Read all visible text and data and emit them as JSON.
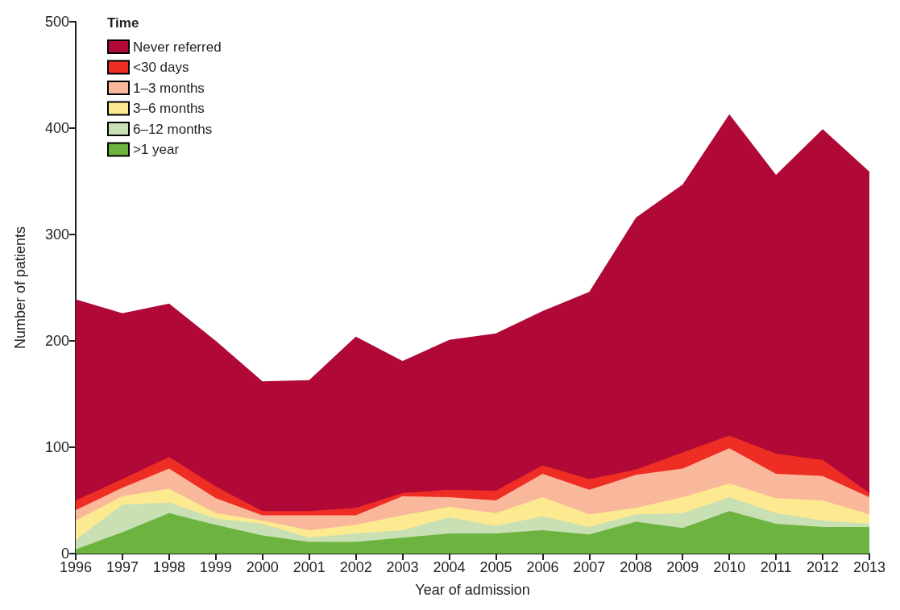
{
  "chart_data": {
    "type": "area",
    "stacked": true,
    "xlabel": "Year of admission",
    "ylabel": "Number of patients",
    "legend_title": "Time",
    "legend": "top left",
    "grid": false,
    "x": [
      1996,
      1997,
      1998,
      1999,
      2000,
      2001,
      2002,
      2003,
      2004,
      2005,
      2006,
      2007,
      2008,
      2009,
      2010,
      2011,
      2012,
      2013
    ],
    "xlim": [
      1996,
      2013
    ],
    "xticks": [
      1996,
      1997,
      1998,
      1999,
      2000,
      2001,
      2002,
      2003,
      2004,
      2005,
      2006,
      2007,
      2008,
      2009,
      2010,
      2011,
      2012,
      2013
    ],
    "ylim": [
      0,
      500
    ],
    "yticks": [
      0,
      100,
      200,
      300,
      400,
      500
    ],
    "series": [
      {
        "name": ">1 year",
        "color": "#6db33f",
        "values": [
          4,
          20,
          38,
          27,
          17,
          11,
          11,
          15,
          19,
          19,
          22,
          18,
          30,
          24,
          40,
          28,
          25,
          25
        ]
      },
      {
        "name": "6–12 months",
        "color": "#c9e0b5",
        "values": [
          9,
          26,
          10,
          6,
          11,
          4,
          8,
          7,
          15,
          7,
          13,
          7,
          7,
          14,
          13,
          10,
          6,
          3
        ]
      },
      {
        "name": "3–6 months",
        "color": "#fde98f",
        "values": [
          18,
          8,
          13,
          5,
          3,
          7,
          8,
          14,
          10,
          12,
          18,
          12,
          6,
          15,
          13,
          14,
          19,
          9
        ]
      },
      {
        "name": "1–3 months",
        "color": "#f9b89c",
        "values": [
          10,
          8,
          19,
          14,
          5,
          14,
          9,
          18,
          9,
          12,
          22,
          23,
          31,
          27,
          33,
          23,
          23,
          16
        ]
      },
      {
        "name": "<30 days",
        "color": "#ee2d24",
        "values": [
          9,
          8,
          11,
          11,
          4,
          4,
          7,
          3,
          7,
          9,
          8,
          10,
          5,
          15,
          12,
          19,
          15,
          4
        ]
      },
      {
        "name": "Never referred",
        "color": "#b00837",
        "values": [
          189,
          156,
          144,
          137,
          122,
          123,
          161,
          124,
          141,
          148,
          145,
          176,
          237,
          252,
          302,
          262,
          311,
          302
        ]
      }
    ]
  }
}
